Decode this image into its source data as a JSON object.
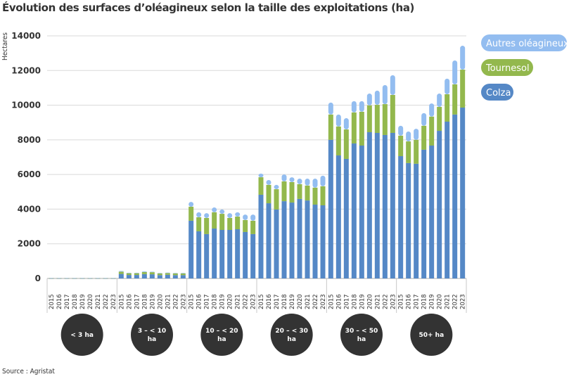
{
  "chart_data": {
    "type": "bar",
    "stacked": true,
    "title": "Évolution des surfaces d’oléagineux selon la taille des exploitations (ha)",
    "ylabel": "Hectares",
    "ylim": [
      0,
      14000
    ],
    "yticks": [
      0,
      2000,
      4000,
      6000,
      8000,
      10000,
      12000,
      14000
    ],
    "grid": true,
    "legend_placement": "top-right",
    "years": [
      "2015",
      "2016",
      "2017",
      "2018",
      "2019",
      "2020",
      "2021",
      "2022",
      "2023"
    ],
    "groups": [
      {
        "label": "< 3 ha",
        "label_lines": [
          "< 3 ha"
        ],
        "colza": [
          10,
          10,
          10,
          10,
          10,
          10,
          10,
          10,
          10
        ],
        "tournesol": [
          5,
          5,
          5,
          5,
          5,
          5,
          5,
          5,
          5
        ],
        "autres": [
          5,
          5,
          5,
          5,
          5,
          5,
          5,
          5,
          5
        ]
      },
      {
        "label": "3 – < 10 ha",
        "label_lines": [
          "3 – < 10",
          "ha"
        ],
        "colza": [
          260,
          200,
          200,
          250,
          240,
          190,
          210,
          190,
          190
        ],
        "tournesol": [
          130,
          100,
          100,
          120,
          120,
          100,
          100,
          100,
          100
        ],
        "autres": [
          40,
          30,
          30,
          40,
          30,
          30,
          30,
          30,
          30
        ]
      },
      {
        "label": "10 – < 20 ha",
        "label_lines": [
          "10 – < 20",
          "ha"
        ],
        "colza": [
          3330,
          2720,
          2560,
          2880,
          2800,
          2800,
          2840,
          2680,
          2560
        ],
        "tournesol": [
          810,
          810,
          930,
          940,
          930,
          690,
          730,
          690,
          770
        ],
        "autres": [
          280,
          290,
          280,
          280,
          250,
          280,
          250,
          320,
          360
        ]
      },
      {
        "label": "20 – < 30 ha",
        "label_lines": [
          "20 – < 30",
          "ha"
        ],
        "colza": [
          4830,
          4340,
          3980,
          4460,
          4380,
          4590,
          4500,
          4260,
          4220
        ],
        "tournesol": [
          1010,
          1060,
          1170,
          1140,
          1180,
          850,
          860,
          980,
          1100
        ],
        "autres": [
          210,
          280,
          250,
          400,
          280,
          320,
          400,
          520,
          610
        ]
      },
      {
        "label": "30 – < 50 ha",
        "label_lines": [
          "30 – < 50",
          "ha"
        ],
        "colza": [
          8000,
          7100,
          6900,
          7790,
          7670,
          8440,
          8400,
          8280,
          8400
        ],
        "tournesol": [
          1460,
          1670,
          1700,
          1790,
          1950,
          1550,
          1620,
          1780,
          2190
        ],
        "autres": [
          690,
          690,
          650,
          650,
          610,
          680,
          820,
          1100,
          1140
        ]
      },
      {
        "label": "50+ ha",
        "label_lines": [
          "50+ ha"
        ],
        "colza": [
          7060,
          6660,
          6620,
          7430,
          7670,
          8520,
          9050,
          9460,
          9860
        ],
        "tournesol": [
          1180,
          1250,
          1380,
          1380,
          1670,
          1380,
          1580,
          1740,
          2190
        ],
        "autres": [
          570,
          570,
          640,
          730,
          760,
          770,
          900,
          1380,
          1380
        ]
      }
    ],
    "series": [
      {
        "key": "autres",
        "name": "Autres oléagineux",
        "color": "#93bdf0"
      },
      {
        "key": "tournesol",
        "name": "Tournesol",
        "color": "#93b84d"
      },
      {
        "key": "colza",
        "name": "Colza",
        "color": "#5588c6"
      }
    ]
  },
  "source": "Source : Agristat",
  "colors": {
    "group_circle": "#333333",
    "grid": "#d9d9d9",
    "axis": "#c8c8c8"
  }
}
